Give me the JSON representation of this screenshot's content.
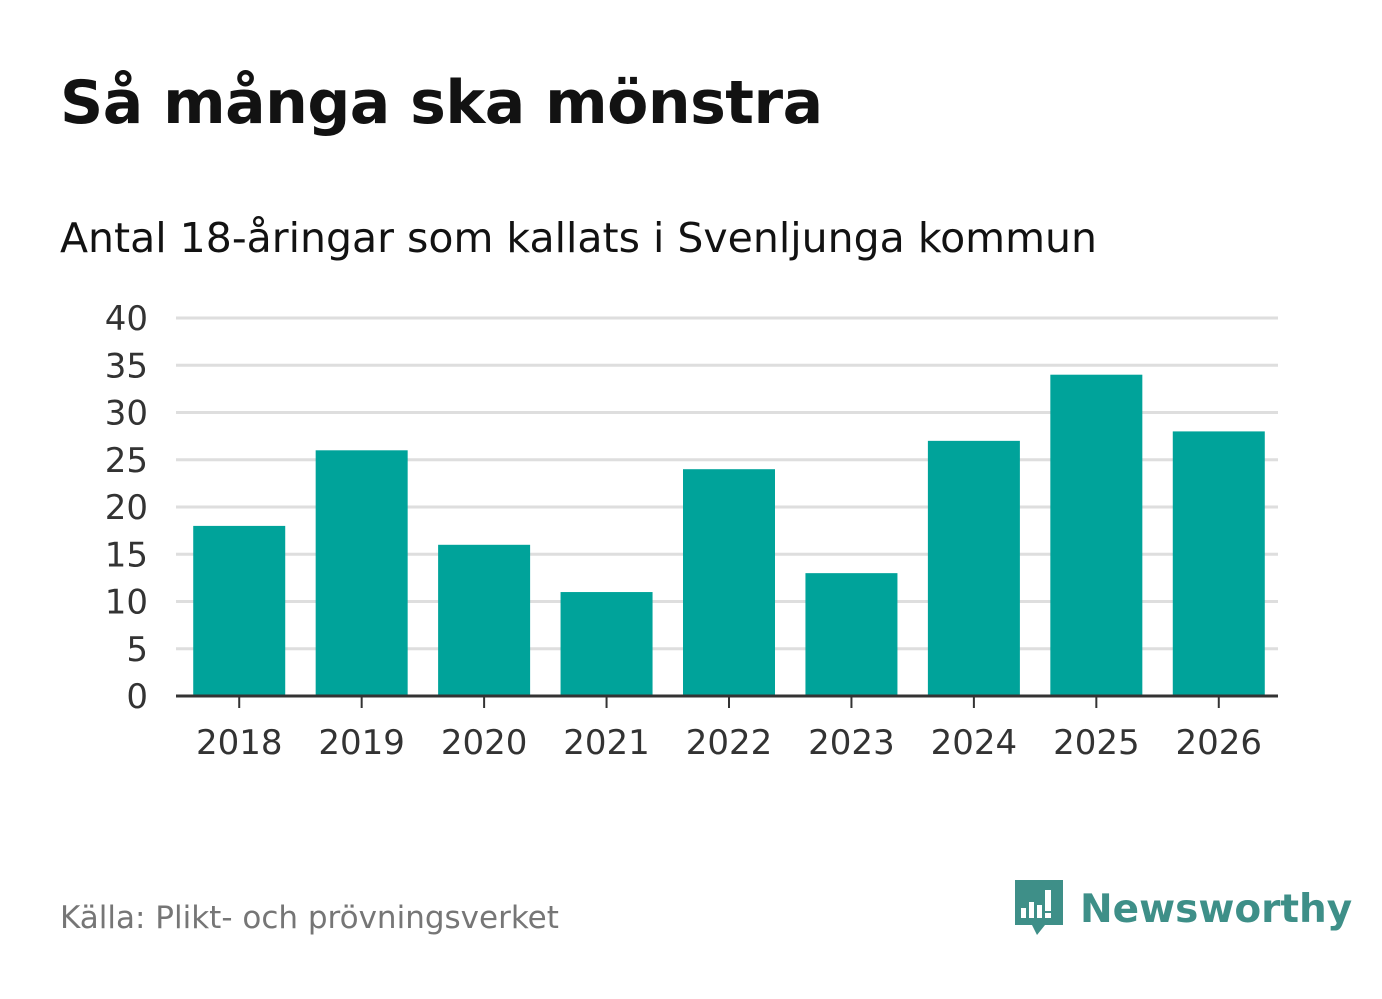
{
  "chart_data": {
    "type": "bar",
    "title": "Så många ska mönstra",
    "subtitle": "Antal 18-åringar som kallats i Svenljunga kommun",
    "categories": [
      "2018",
      "2019",
      "2020",
      "2021",
      "2022",
      "2023",
      "2024",
      "2025",
      "2026"
    ],
    "values": [
      18,
      26,
      16,
      11,
      24,
      13,
      27,
      34,
      28
    ],
    "xlabel": "",
    "ylabel": "",
    "ylim": [
      0,
      40
    ],
    "yticks": [
      0,
      5,
      10,
      15,
      20,
      25,
      30,
      35,
      40
    ],
    "grid": true,
    "bar_color": "#00a39a"
  },
  "footer": {
    "source": "Källa: Plikt- och prövningsverket",
    "brand": "Newsworthy",
    "brand_color": "#3e8f88",
    "logo_icon": "bar-chart-speech-bubble-icon"
  }
}
